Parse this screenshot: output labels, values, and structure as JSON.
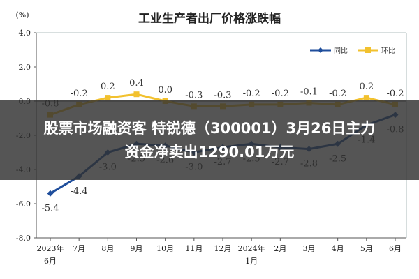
{
  "headline": {
    "line1": "股票市场融资客 特锐德（300001）3月26日主力",
    "line2": "资金净卖出1290.01万元"
  },
  "chart_data": {
    "type": "line",
    "title": "工业生产者出厂价格涨跌幅",
    "ylabel": "(%)",
    "xlabel": "",
    "ylim": [
      -8.0,
      4.0
    ],
    "yticks": [
      "4.0",
      "2.0",
      "0.0",
      "-2.0",
      "-4.0",
      "-6.0",
      "-8.0"
    ],
    "ytick_values": [
      4,
      2,
      0,
      -2,
      -4,
      -6,
      -8
    ],
    "categories": [
      "2023年 6月",
      "7月",
      "8月",
      "9月",
      "10月",
      "11月",
      "12月",
      "2024年 1月",
      "2月",
      "3月",
      "4月",
      "5月",
      "6月"
    ],
    "series": [
      {
        "name": "同比",
        "color": "#1f4e9c",
        "values": [
          -5.4,
          -4.4,
          -3.0,
          -2.5,
          -2.6,
          -3.0,
          -2.7,
          -2.5,
          -2.7,
          -2.8,
          -2.5,
          -1.4,
          -0.8
        ],
        "labels": [
          "-5.4",
          "-4.4",
          "-3.0",
          "-2.5",
          "-2.6",
          "-3.0",
          "-2.7",
          "-2.5",
          "-2.7",
          "-2.8",
          "-2.5",
          "-1.4",
          "-0.8"
        ]
      },
      {
        "name": "环比",
        "color": "#f2c12e",
        "values": [
          -0.8,
          -0.2,
          0.2,
          0.4,
          0.0,
          -0.3,
          -0.3,
          -0.2,
          -0.2,
          -0.1,
          -0.2,
          0.2,
          -0.2
        ],
        "labels": [
          "-0.8",
          "-0.2",
          "0.2",
          "0.4",
          "0.0",
          "-0.3",
          "-0.3",
          "-0.2",
          "-0.2",
          "-0.1",
          "-0.2",
          "0.2",
          "-0.2"
        ]
      }
    ],
    "legend": "top-right",
    "grid": false
  }
}
